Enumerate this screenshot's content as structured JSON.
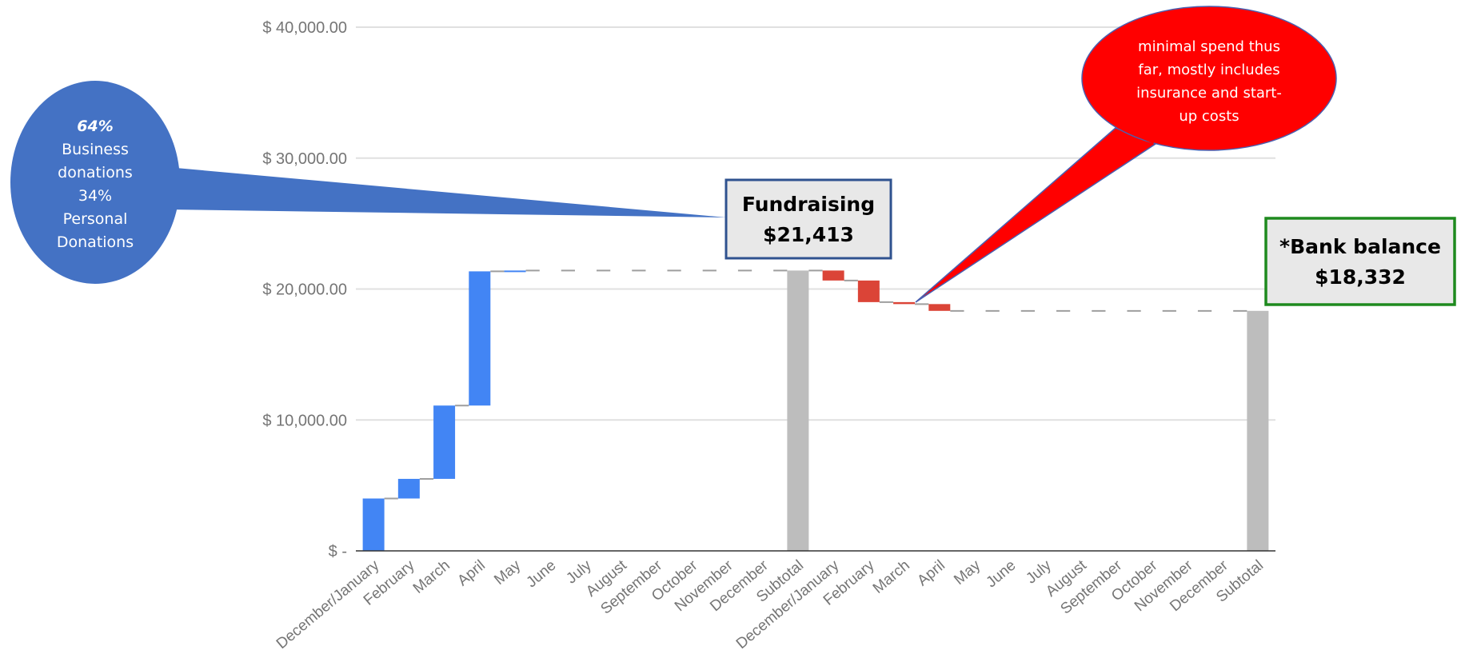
{
  "chart_data": {
    "type": "bar",
    "subtype": "waterfall",
    "ylim": [
      0,
      40000
    ],
    "y_ticks": [
      {
        "value": 0,
        "label": "$ -"
      },
      {
        "value": 10000,
        "label": "$ 10,000.00"
      },
      {
        "value": 20000,
        "label": "$ 20,000.00"
      },
      {
        "value": 30000,
        "label": "$ 30,000.00"
      },
      {
        "value": 40000,
        "label": "$ 40,000.00"
      }
    ],
    "grid": true,
    "colors": {
      "increase": "#4285f4",
      "decrease": "#db4437",
      "subtotal": "#bdbdbd",
      "connector": "#9e9e9e"
    },
    "categories": [
      "December/January",
      "February",
      "March",
      "April",
      "May",
      "June",
      "July",
      "August",
      "September",
      "October",
      "November",
      "December",
      "Subtotal",
      "December/January",
      "February",
      "March",
      "April",
      "May",
      "June",
      "July",
      "August",
      "September",
      "October",
      "November",
      "December",
      "Subtotal"
    ],
    "bars": [
      {
        "start": 0,
        "end": 4000,
        "kind": "increase"
      },
      {
        "start": 4000,
        "end": 5500,
        "kind": "increase"
      },
      {
        "start": 5500,
        "end": 11100,
        "kind": "increase"
      },
      {
        "start": 11100,
        "end": 21350,
        "kind": "increase"
      },
      {
        "start": 21350,
        "end": 21413,
        "kind": "increase"
      },
      {
        "start": 21413,
        "end": 21413,
        "kind": "increase"
      },
      {
        "start": 21413,
        "end": 21413,
        "kind": "increase"
      },
      {
        "start": 21413,
        "end": 21413,
        "kind": "increase"
      },
      {
        "start": 21413,
        "end": 21413,
        "kind": "increase"
      },
      {
        "start": 21413,
        "end": 21413,
        "kind": "increase"
      },
      {
        "start": 21413,
        "end": 21413,
        "kind": "increase"
      },
      {
        "start": 21413,
        "end": 21413,
        "kind": "increase"
      },
      {
        "start": 0,
        "end": 21413,
        "kind": "subtotal"
      },
      {
        "start": 21413,
        "end": 20650,
        "kind": "decrease"
      },
      {
        "start": 20650,
        "end": 19000,
        "kind": "decrease"
      },
      {
        "start": 19000,
        "end": 18850,
        "kind": "decrease"
      },
      {
        "start": 18850,
        "end": 18332,
        "kind": "decrease"
      },
      {
        "start": 18332,
        "end": 18332,
        "kind": "decrease"
      },
      {
        "start": 18332,
        "end": 18332,
        "kind": "decrease"
      },
      {
        "start": 18332,
        "end": 18332,
        "kind": "decrease"
      },
      {
        "start": 18332,
        "end": 18332,
        "kind": "decrease"
      },
      {
        "start": 18332,
        "end": 18332,
        "kind": "decrease"
      },
      {
        "start": 18332,
        "end": 18332,
        "kind": "decrease"
      },
      {
        "start": 18332,
        "end": 18332,
        "kind": "decrease"
      },
      {
        "start": 18332,
        "end": 18332,
        "kind": "decrease"
      },
      {
        "start": 0,
        "end": 18332,
        "kind": "subtotal"
      }
    ]
  },
  "annotations": {
    "left_bubble": {
      "lines": [
        "64%",
        "Business",
        "donations",
        "34%",
        "Personal",
        "Donations"
      ],
      "color": "#4472c4"
    },
    "right_bubble": {
      "lines": [
        "minimal spend thus",
        "far, mostly includes",
        "insurance and start-",
        "up costs"
      ],
      "color": "#ff0000"
    },
    "fundraising_box": {
      "lines": [
        "Fundraising",
        "$21,413"
      ],
      "border_color": "#2f528f"
    },
    "bank_box": {
      "lines": [
        "*Bank balance",
        "$18,332"
      ],
      "border_color": "#1e8a1e"
    }
  }
}
